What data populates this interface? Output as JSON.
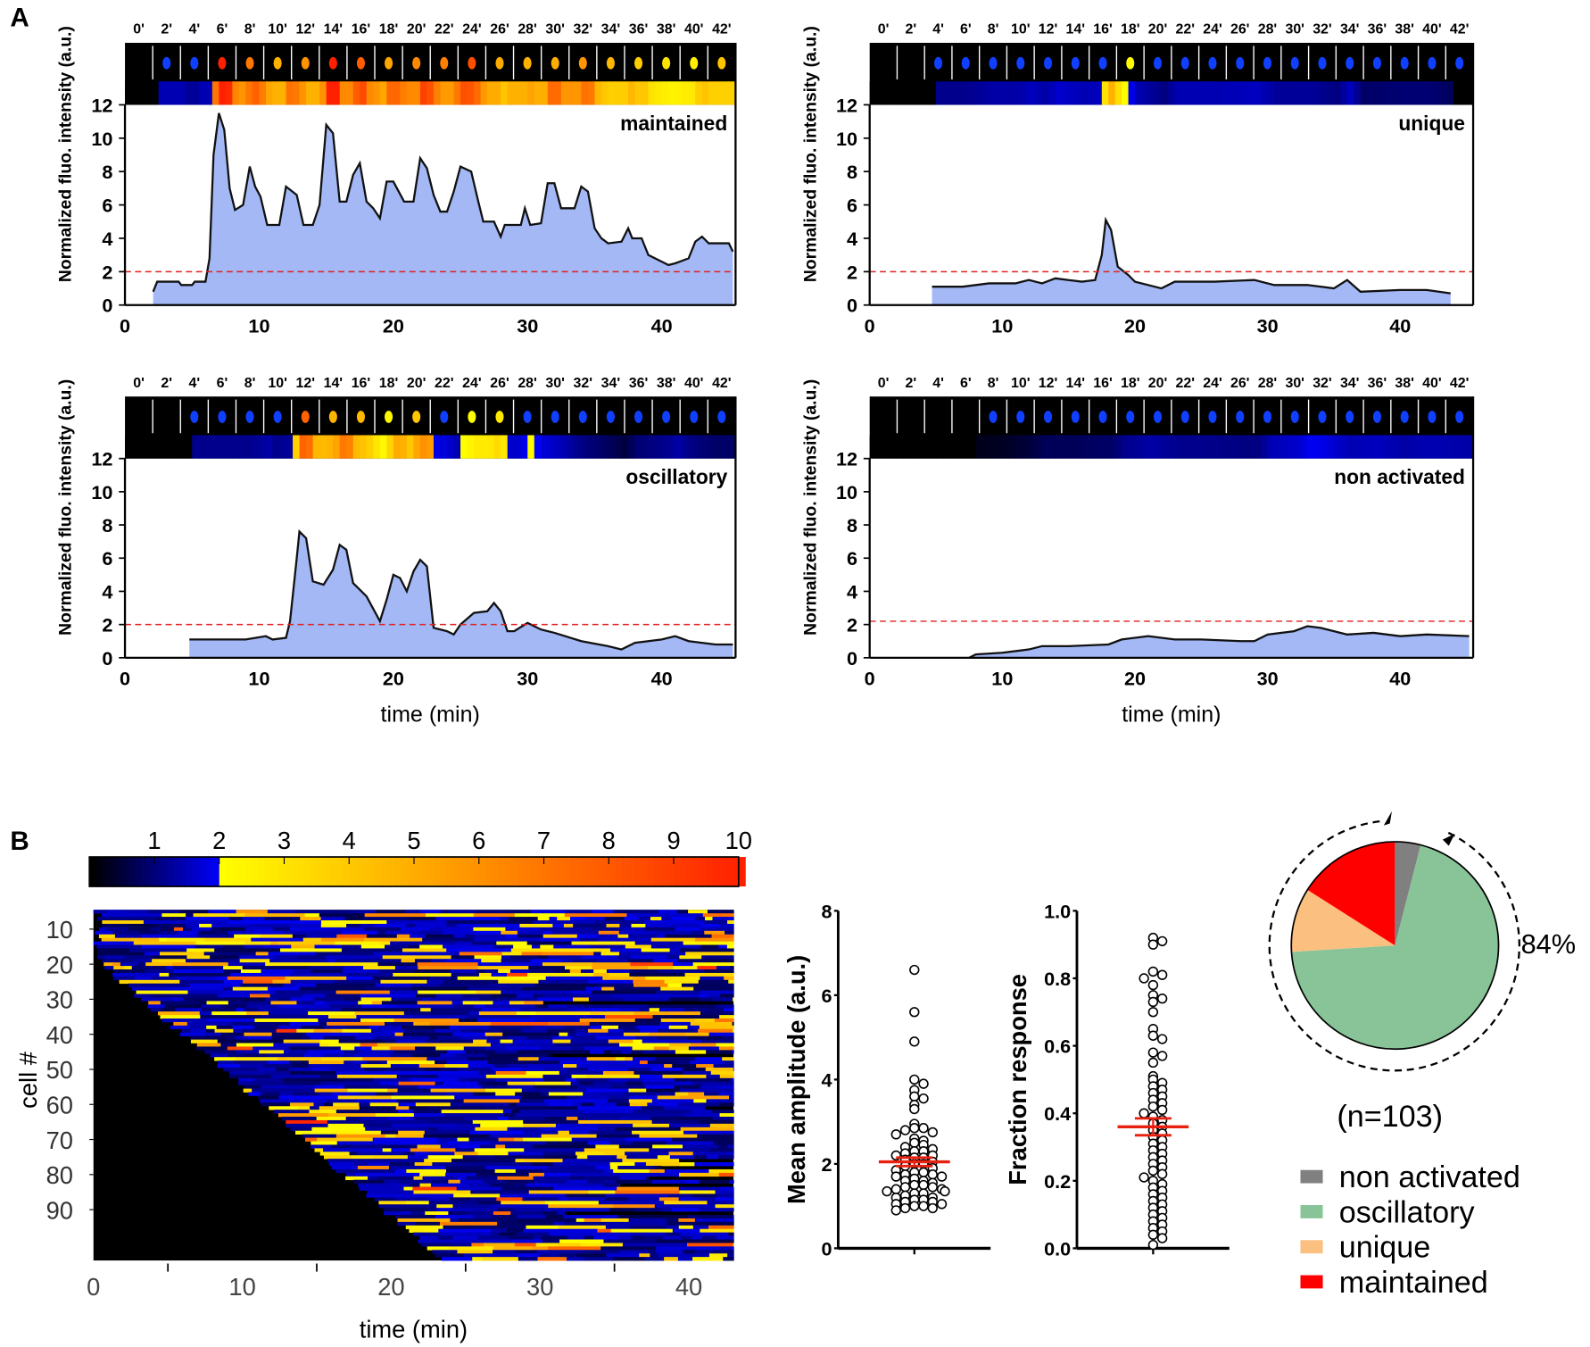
{
  "panel_labels": {
    "a": "A",
    "b": "B"
  },
  "frame_labels": [
    "0'",
    "2'",
    "4'",
    "6'",
    "8'",
    "10'",
    "12'",
    "14'",
    "16'",
    "18'",
    "20'",
    "22'",
    "24'",
    "26'",
    "28'",
    "30'",
    "32'",
    "34'",
    "36'",
    "38'",
    "40'",
    "42'"
  ],
  "colors": {
    "trace_fill": "#a3b8f5",
    "threshold": "#e02020",
    "non_activated": "#808080",
    "oscillatory": "#88c497",
    "unique": "#fbbf80",
    "maintained": "#ff0000",
    "mean_bar": "#e82010"
  },
  "chart_data": [
    {
      "type": "area",
      "title": "maintained",
      "ylabel": "Normalized fluo. intensity (a.u.)",
      "xlabel": "",
      "xlim": [
        0,
        45.5
      ],
      "ylim": [
        0,
        12
      ],
      "xticks": [
        "0",
        "10",
        "20",
        "30",
        "40"
      ],
      "yticks": [
        "0",
        "2",
        "4",
        "6",
        "8",
        "10",
        "12"
      ],
      "threshold": 2,
      "points": [
        [
          2.1,
          0.8
        ],
        [
          2.4,
          1.4
        ],
        [
          4,
          1.4
        ],
        [
          4.2,
          1.2
        ],
        [
          5,
          1.2
        ],
        [
          5.2,
          1.4
        ],
        [
          6,
          1.4
        ],
        [
          6.3,
          2.8
        ],
        [
          6.6,
          9
        ],
        [
          7,
          11.5
        ],
        [
          7.4,
          10.5
        ],
        [
          7.8,
          7
        ],
        [
          8.2,
          5.7
        ],
        [
          8.8,
          6
        ],
        [
          9.3,
          8.3
        ],
        [
          9.7,
          7.1
        ],
        [
          10.1,
          6.5
        ],
        [
          10.6,
          4.8
        ],
        [
          11.5,
          4.8
        ],
        [
          12,
          7.1
        ],
        [
          12.8,
          6.6
        ],
        [
          13.3,
          4.8
        ],
        [
          14,
          4.8
        ],
        [
          14.5,
          6
        ],
        [
          15,
          10.8
        ],
        [
          15.5,
          10.3
        ],
        [
          16,
          6.2
        ],
        [
          16.5,
          6.2
        ],
        [
          17,
          7.8
        ],
        [
          17.5,
          8.5
        ],
        [
          18,
          6.2
        ],
        [
          18.5,
          5.8
        ],
        [
          19,
          5.2
        ],
        [
          19.5,
          7.4
        ],
        [
          20,
          7.4
        ],
        [
          20.8,
          6.2
        ],
        [
          21.5,
          6.2
        ],
        [
          22,
          8.8
        ],
        [
          22.5,
          8.2
        ],
        [
          23,
          6.6
        ],
        [
          23.5,
          5.6
        ],
        [
          24,
          5.6
        ],
        [
          24.5,
          6.8
        ],
        [
          25,
          8.3
        ],
        [
          25.8,
          8
        ],
        [
          26.3,
          6.3
        ],
        [
          26.7,
          5
        ],
        [
          27.5,
          5
        ],
        [
          28,
          4.1
        ],
        [
          28.3,
          4.8
        ],
        [
          29.5,
          4.8
        ],
        [
          29.8,
          5.8
        ],
        [
          30.2,
          4.8
        ],
        [
          31,
          4.9
        ],
        [
          31.5,
          7.3
        ],
        [
          32,
          7.3
        ],
        [
          32.5,
          5.8
        ],
        [
          33.5,
          5.8
        ],
        [
          34,
          7.1
        ],
        [
          34.5,
          6.8
        ],
        [
          35,
          4.6
        ],
        [
          35.5,
          4
        ],
        [
          36,
          3.7
        ],
        [
          37,
          3.8
        ],
        [
          37.5,
          4.6
        ],
        [
          37.8,
          4
        ],
        [
          38.5,
          4
        ],
        [
          39,
          3
        ],
        [
          40,
          2.6
        ],
        [
          40.5,
          2.4
        ],
        [
          41,
          2.5
        ],
        [
          42,
          2.8
        ],
        [
          42.5,
          3.8
        ],
        [
          43,
          4.1
        ],
        [
          43.5,
          3.7
        ],
        [
          45,
          3.7
        ],
        [
          45.3,
          3.2
        ]
      ]
    },
    {
      "type": "area",
      "title": "unique",
      "ylabel": "Normalized fluo. intensity (a.u.)",
      "xlabel": "",
      "xlim": [
        0,
        45.5
      ],
      "ylim": [
        0,
        12
      ],
      "xticks": [
        "0",
        "10",
        "20",
        "30",
        "40"
      ],
      "yticks": [
        "0",
        "2",
        "4",
        "6",
        "8",
        "10",
        "12"
      ],
      "threshold": 2,
      "points": [
        [
          4.7,
          1.1
        ],
        [
          7,
          1.1
        ],
        [
          9,
          1.3
        ],
        [
          11,
          1.3
        ],
        [
          12,
          1.5
        ],
        [
          13,
          1.3
        ],
        [
          14,
          1.6
        ],
        [
          15,
          1.5
        ],
        [
          16,
          1.4
        ],
        [
          17,
          1.5
        ],
        [
          17.5,
          3
        ],
        [
          17.8,
          5.1
        ],
        [
          18.2,
          4.5
        ],
        [
          18.7,
          2.3
        ],
        [
          19.5,
          1.8
        ],
        [
          20,
          1.4
        ],
        [
          21,
          1.2
        ],
        [
          22,
          1
        ],
        [
          23,
          1.4
        ],
        [
          26,
          1.4
        ],
        [
          29,
          1.5
        ],
        [
          30.5,
          1.2
        ],
        [
          33,
          1.2
        ],
        [
          35,
          1
        ],
        [
          36,
          1.5
        ],
        [
          37,
          0.8
        ],
        [
          40,
          0.9
        ],
        [
          42,
          0.9
        ],
        [
          43.8,
          0.7
        ]
      ]
    },
    {
      "type": "area",
      "title": "oscillatory",
      "ylabel": "Normalized fluo. intensity (a.u.)",
      "xlabel": "time (min)",
      "xlim": [
        0,
        45.5
      ],
      "ylim": [
        0,
        12
      ],
      "xticks": [
        "0",
        "10",
        "20",
        "30",
        "40"
      ],
      "yticks": [
        "0",
        "2",
        "4",
        "6",
        "8",
        "10",
        "12"
      ],
      "threshold": 2,
      "points": [
        [
          4.8,
          1.1
        ],
        [
          9,
          1.1
        ],
        [
          10.5,
          1.3
        ],
        [
          11,
          1.1
        ],
        [
          12,
          1.2
        ],
        [
          12.3,
          2.2
        ],
        [
          12.8,
          6
        ],
        [
          13,
          7.6
        ],
        [
          13.5,
          7.2
        ],
        [
          14,
          4.6
        ],
        [
          14.8,
          4.4
        ],
        [
          15.5,
          5.3
        ],
        [
          16,
          6.8
        ],
        [
          16.5,
          6.5
        ],
        [
          17,
          4.5
        ],
        [
          18,
          3.7
        ],
        [
          19,
          2.2
        ],
        [
          19.5,
          3.5
        ],
        [
          20,
          5
        ],
        [
          20.5,
          4.8
        ],
        [
          21,
          4
        ],
        [
          21.5,
          5.2
        ],
        [
          22,
          5.9
        ],
        [
          22.5,
          5.5
        ],
        [
          23,
          1.8
        ],
        [
          24,
          1.6
        ],
        [
          24.5,
          1.4
        ],
        [
          25,
          2
        ],
        [
          26,
          2.7
        ],
        [
          27,
          2.8
        ],
        [
          27.5,
          3.3
        ],
        [
          28,
          2.8
        ],
        [
          28.5,
          1.6
        ],
        [
          29,
          1.6
        ],
        [
          30,
          2.1
        ],
        [
          31,
          1.7
        ],
        [
          32,
          1.5
        ],
        [
          34,
          1
        ],
        [
          36,
          0.7
        ],
        [
          37,
          0.5
        ],
        [
          38,
          0.9
        ],
        [
          40,
          1.1
        ],
        [
          41,
          1.3
        ],
        [
          42,
          1
        ],
        [
          44,
          0.8
        ],
        [
          45.3,
          0.8
        ]
      ]
    },
    {
      "type": "area",
      "title": "non activated",
      "ylabel": "Normalized fluo. intensity (a.u.)",
      "xlabel": "time (min)",
      "xlim": [
        0,
        45.5
      ],
      "ylim": [
        0,
        12
      ],
      "xticks": [
        "0",
        "10",
        "20",
        "30",
        "40"
      ],
      "yticks": [
        "0",
        "2",
        "4",
        "6",
        "8",
        "10",
        "12"
      ],
      "threshold": 2.2,
      "points": [
        [
          7.5,
          0
        ],
        [
          8,
          0.2
        ],
        [
          10,
          0.3
        ],
        [
          12,
          0.5
        ],
        [
          13,
          0.7
        ],
        [
          15,
          0.7
        ],
        [
          18,
          0.8
        ],
        [
          19,
          1.1
        ],
        [
          21,
          1.3
        ],
        [
          23,
          1.1
        ],
        [
          25,
          1.1
        ],
        [
          28,
          1
        ],
        [
          29,
          1
        ],
        [
          30,
          1.4
        ],
        [
          32,
          1.6
        ],
        [
          33,
          1.9
        ],
        [
          34,
          1.8
        ],
        [
          36,
          1.4
        ],
        [
          38,
          1.5
        ],
        [
          40,
          1.3
        ],
        [
          42,
          1.4
        ],
        [
          45.2,
          1.3
        ]
      ]
    },
    {
      "type": "heatmap",
      "xlabel": "time (min)",
      "ylabel": "cell #",
      "xticks": [
        "0",
        "10",
        "20",
        "30",
        "40"
      ],
      "yticks": [
        "10",
        "20",
        "30",
        "40",
        "50",
        "60",
        "70",
        "80",
        "90"
      ],
      "colorbar_ticks": [
        "1",
        "2",
        "3",
        "4",
        "5",
        "6",
        "7",
        "8",
        "9",
        "10"
      ],
      "n_cells": 100,
      "xlim": [
        0,
        43
      ]
    },
    {
      "type": "scatter",
      "ylabel": "Mean amplitude (a.u.)",
      "ylim": [
        0,
        8
      ],
      "yticks": [
        "0",
        "2",
        "4",
        "6",
        "8"
      ],
      "mean": 2.05,
      "sem": 0.1,
      "values": [
        6.6,
        5.6,
        4.9,
        4.0,
        3.9,
        3.75,
        3.6,
        3.55,
        3.4,
        3.3,
        2.95,
        2.85,
        2.85,
        2.8,
        2.75,
        2.7,
        2.6,
        2.55,
        2.5,
        2.45,
        2.4,
        2.35,
        2.3,
        2.3,
        2.25,
        2.2,
        2.2,
        2.15,
        2.15,
        2.1,
        2.05,
        2.0,
        2.0,
        1.95,
        1.9,
        1.85,
        1.8,
        1.8,
        1.75,
        1.75,
        1.7,
        1.7,
        1.65,
        1.6,
        1.6,
        1.55,
        1.5,
        1.5,
        1.45,
        1.45,
        1.4,
        1.4,
        1.35,
        1.35,
        1.3,
        1.3,
        1.25,
        1.2,
        1.2,
        1.15,
        1.15,
        1.1,
        1.1,
        1.05,
        1.05,
        1.0,
        1.0,
        0.95,
        0.95,
        0.9
      ]
    },
    {
      "type": "scatter",
      "ylabel": "Fraction response",
      "ylim": [
        0,
        1.0
      ],
      "yticks": [
        "0.0",
        "0.2",
        "0.4",
        "0.6",
        "0.8",
        "1.0"
      ],
      "mean": 0.36,
      "sem": 0.025,
      "values": [
        0.92,
        0.91,
        0.9,
        0.82,
        0.81,
        0.8,
        0.78,
        0.75,
        0.74,
        0.73,
        0.7,
        0.65,
        0.63,
        0.62,
        0.58,
        0.57,
        0.55,
        0.51,
        0.5,
        0.49,
        0.48,
        0.47,
        0.46,
        0.45,
        0.44,
        0.43,
        0.42,
        0.41,
        0.4,
        0.39,
        0.38,
        0.37,
        0.36,
        0.35,
        0.34,
        0.33,
        0.32,
        0.31,
        0.3,
        0.29,
        0.28,
        0.27,
        0.26,
        0.25,
        0.24,
        0.23,
        0.22,
        0.21,
        0.2,
        0.19,
        0.18,
        0.17,
        0.16,
        0.15,
        0.14,
        0.13,
        0.12,
        0.11,
        0.1,
        0.09,
        0.08,
        0.07,
        0.06,
        0.05,
        0.04,
        0.03,
        0.01
      ]
    },
    {
      "type": "pie",
      "slices": [
        {
          "label": "non activated",
          "value": 4
        },
        {
          "label": "oscillatory",
          "value": 70
        },
        {
          "label": "unique",
          "value": 10
        },
        {
          "label": "maintained",
          "value": 16
        }
      ],
      "annotation": "84%",
      "n_label": "(n=103)",
      "legend": "bottom"
    }
  ]
}
